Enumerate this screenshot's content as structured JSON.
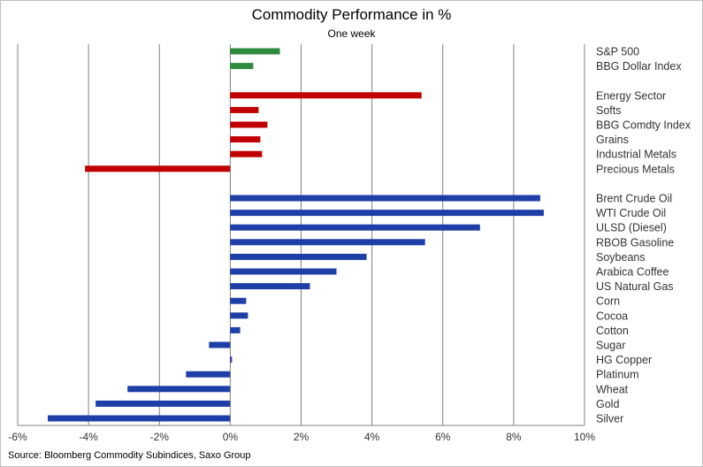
{
  "chart_data": {
    "type": "bar",
    "orientation": "horizontal",
    "title": "Commodity Performance in %",
    "subtitle": "One week",
    "xlabel": "",
    "ylabel": "",
    "xlim": [
      -6,
      10
    ],
    "x_ticks": [
      "-6%",
      "-4%",
      "-2%",
      "0%",
      "2%",
      "4%",
      "6%",
      "8%",
      "10%"
    ],
    "grid": "vertical",
    "category_labels_position": "right",
    "categories": [
      "S&P 500",
      "BBG Dollar Index",
      "",
      "Energy Sector",
      "Softs",
      "BBG Comdty Index",
      "Grains",
      "Industrial Metals",
      "Precious Metals",
      "",
      "Brent Crude Oil",
      "WTI Crude Oil",
      "ULSD (Diesel)",
      "RBOB Gasoline",
      "Soybeans",
      "Arabica Coffee",
      "US Natural Gas",
      "Corn",
      "Cocoa",
      "Cotton",
      "Sugar",
      "HG Copper",
      "Platinum",
      "Wheat",
      "Gold",
      "Silver"
    ],
    "values": [
      1.4,
      0.65,
      null,
      5.4,
      0.8,
      1.05,
      0.85,
      0.9,
      -4.1,
      null,
      8.75,
      8.85,
      7.05,
      5.5,
      3.85,
      3.0,
      2.25,
      0.45,
      0.5,
      0.28,
      -0.6,
      0.05,
      -1.25,
      -2.9,
      -3.8,
      -5.15
    ],
    "colors": [
      "#2e8b3e",
      "#2e8b3e",
      null,
      "#c00000",
      "#c00000",
      "#c00000",
      "#c00000",
      "#c00000",
      "#c00000",
      null,
      "#1f3fa8",
      "#1f3fa8",
      "#1f3fa8",
      "#1f3fa8",
      "#1f3fa8",
      "#1f3fa8",
      "#1f3fa8",
      "#1f3fa8",
      "#1f3fa8",
      "#1f3fa8",
      "#1f3fa8",
      "#1f3fa8",
      "#1f3fa8",
      "#1f3fa8",
      "#1f3fa8",
      "#1f3fa8"
    ],
    "groups": [
      {
        "color": "#2e8b3e"
      },
      {
        "color": "#c00000"
      },
      {
        "color": "#1f3fa8"
      }
    ]
  },
  "source": "Source: Bloomberg Commodity Subindices, Saxo Group"
}
